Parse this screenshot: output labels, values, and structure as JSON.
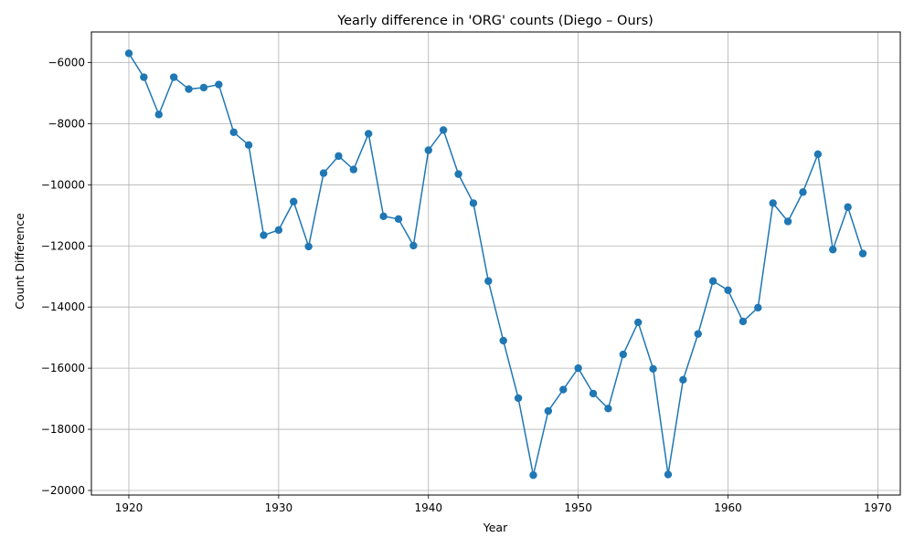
{
  "chart_data": {
    "type": "line",
    "title": "Yearly difference in 'ORG' counts (Diego – Ours)",
    "xlabel": "Year",
    "ylabel": "Count Difference",
    "xlim": [
      1917.5,
      1971.5
    ],
    "ylim": [
      -20150,
      -5000
    ],
    "xticks": [
      1920,
      1930,
      1940,
      1950,
      1960,
      1970
    ],
    "yticks": [
      -20000,
      -18000,
      -16000,
      -14000,
      -12000,
      -10000,
      -8000,
      -6000
    ],
    "grid": true,
    "color": "#1f77b4",
    "marker": "circle",
    "x": [
      1920,
      1921,
      1922,
      1923,
      1924,
      1925,
      1926,
      1927,
      1928,
      1929,
      1930,
      1931,
      1932,
      1933,
      1934,
      1935,
      1936,
      1937,
      1938,
      1939,
      1940,
      1941,
      1942,
      1943,
      1944,
      1945,
      1946,
      1947,
      1948,
      1949,
      1950,
      1951,
      1952,
      1953,
      1954,
      1955,
      1956,
      1957,
      1958,
      1959,
      1960,
      1961,
      1962,
      1963,
      1964,
      1965,
      1966,
      1967,
      1968,
      1969
    ],
    "y": [
      -5700,
      -6480,
      -7700,
      -6480,
      -6870,
      -6820,
      -6720,
      -8280,
      -8700,
      -11650,
      -11480,
      -10550,
      -12020,
      -9620,
      -9060,
      -9500,
      -8330,
      -11030,
      -11120,
      -11990,
      -8870,
      -8210,
      -9650,
      -10600,
      -13150,
      -15100,
      -16980,
      -19500,
      -17400,
      -16700,
      -16000,
      -16830,
      -17320,
      -15550,
      -14500,
      -16020,
      -19480,
      -16380,
      -14880,
      -13150,
      -13450,
      -14470,
      -14020,
      -10600,
      -11200,
      -10240,
      -9000,
      -12120,
      -10730,
      -12250
    ]
  }
}
